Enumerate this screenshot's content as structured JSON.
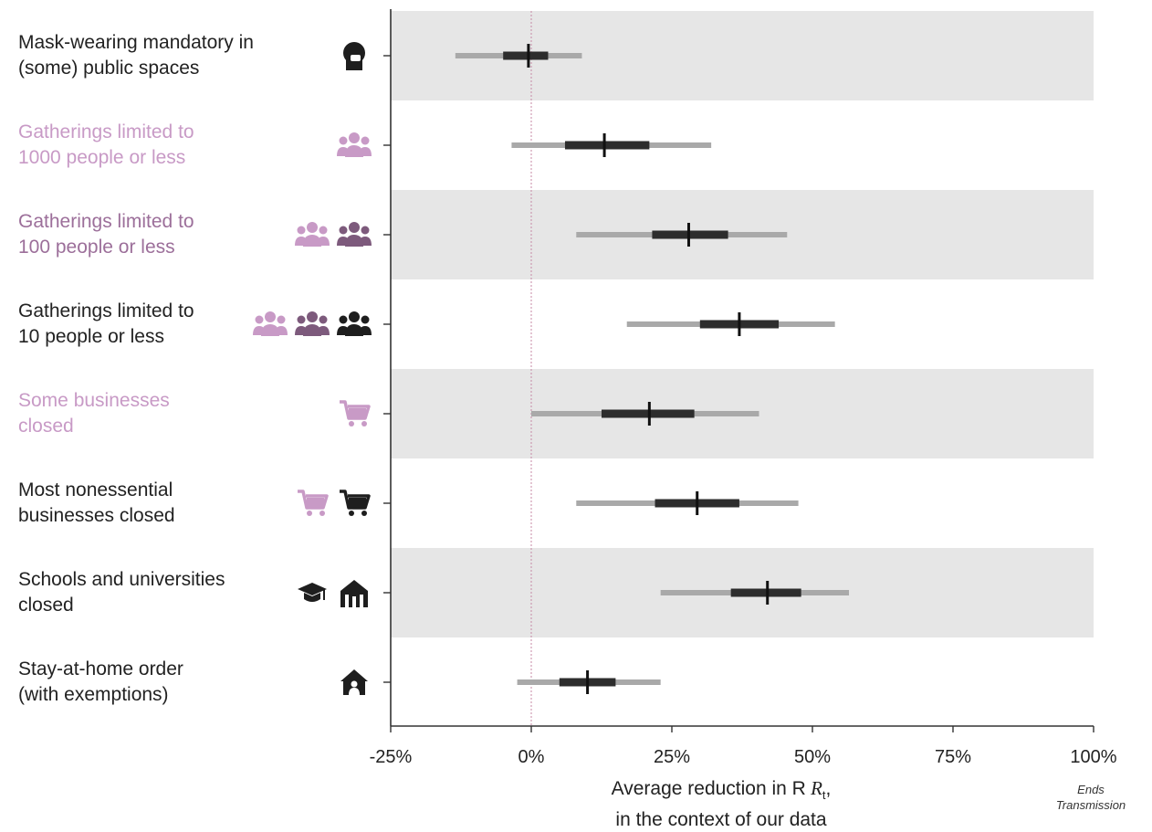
{
  "chart_data": {
    "type": "forest",
    "x_unit": "%",
    "xlim": [
      -25,
      100
    ],
    "xticks": [
      -25,
      0,
      25,
      50,
      75,
      100
    ],
    "xtick_labels": [
      "-25%",
      "0%",
      "25%",
      "50%",
      "75%",
      "100%"
    ],
    "xlabel_line1": "Average reduction in R",
    "xlabel_sub": "t",
    "xlabel_line1_suffix": ",",
    "xlabel_line2": "in the context of our data",
    "end_note": [
      "Ends",
      "Transmission"
    ],
    "reference_line": 0,
    "rows": [
      {
        "label": [
          "Mask-wearing mandatory in",
          "(some) public spaces"
        ],
        "label_color": "#222222",
        "icons": [
          "mask-person-icon"
        ],
        "median": -0.5,
        "ci_inner": [
          -5,
          3
        ],
        "ci_outer": [
          -13.5,
          9
        ],
        "shaded": true
      },
      {
        "label": [
          "Gatherings limited to",
          "1000 people or less"
        ],
        "label_color": "#c89ac6",
        "icons": [
          "group-light-icon"
        ],
        "median": 13,
        "ci_inner": [
          6,
          21
        ],
        "ci_outer": [
          -3.5,
          32
        ],
        "shaded": false
      },
      {
        "label": [
          "Gatherings limited to",
          "100 people or less"
        ],
        "label_color": "#9c6f9a",
        "icons": [
          "group-light-icon",
          "group-medium-icon"
        ],
        "median": 28,
        "ci_inner": [
          21.5,
          35
        ],
        "ci_outer": [
          8,
          45.5
        ],
        "shaded": true
      },
      {
        "label": [
          "Gatherings limited to",
          "10 people or less"
        ],
        "label_color": "#222222",
        "icons": [
          "group-light-icon",
          "group-medium-icon",
          "group-dark-icon"
        ],
        "median": 37,
        "ci_inner": [
          30,
          44
        ],
        "ci_outer": [
          17,
          54
        ],
        "shaded": false
      },
      {
        "label": [
          "Some businesses",
          "closed"
        ],
        "label_color": "#c89ac6",
        "icons": [
          "cart-light-icon"
        ],
        "median": 21,
        "ci_inner": [
          12.5,
          29
        ],
        "ci_outer": [
          0,
          40.5
        ],
        "shaded": true
      },
      {
        "label": [
          "Most nonessential",
          "businesses closed"
        ],
        "label_color": "#222222",
        "icons": [
          "cart-light-icon",
          "cart-dark-icon"
        ],
        "median": 29.5,
        "ci_inner": [
          22,
          37
        ],
        "ci_outer": [
          8,
          47.5
        ],
        "shaded": false
      },
      {
        "label": [
          "Schools and universities",
          "closed"
        ],
        "label_color": "#222222",
        "icons": [
          "graduation-cap-icon",
          "school-building-icon"
        ],
        "median": 42,
        "ci_inner": [
          35.5,
          48
        ],
        "ci_outer": [
          23,
          56.5
        ],
        "shaded": true
      },
      {
        "label": [
          "Stay-at-home order",
          "(with exemptions)"
        ],
        "label_color": "#222222",
        "icons": [
          "house-person-icon"
        ],
        "median": 10,
        "ci_inner": [
          5,
          15
        ],
        "ci_outer": [
          -2.5,
          23
        ],
        "shaded": false
      }
    ],
    "colors": {
      "band": "#e6e6e6",
      "ci_outer": "#a9a9a9",
      "ci_inner": "#2d2d2d",
      "median": "#111111",
      "reference": "#c78aa6",
      "axis": "#333333",
      "icon_light": "#c89ac6",
      "icon_medium": "#7d5a7c",
      "icon_dark": "#1e1e1e"
    }
  }
}
